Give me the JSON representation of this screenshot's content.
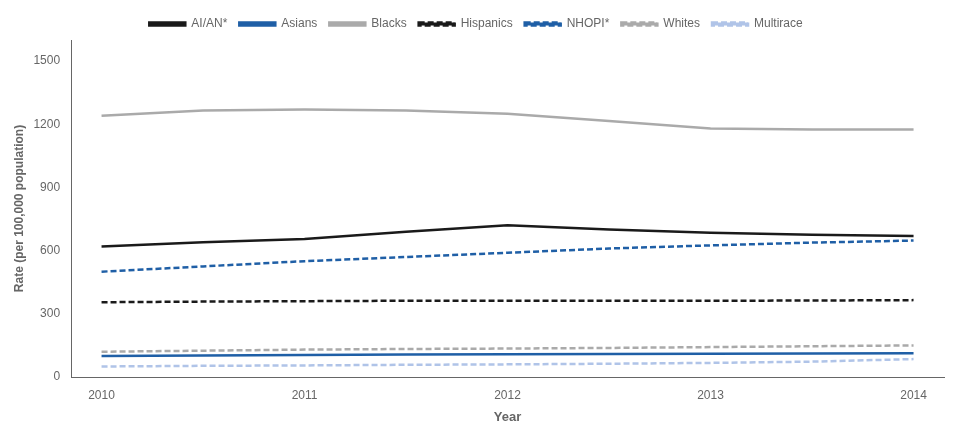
{
  "chart_data": {
    "type": "line",
    "x": [
      2010,
      2010.5,
      2011,
      2011.5,
      2012,
      2012.5,
      2013,
      2013.5,
      2014
    ],
    "series": [
      {
        "name": "AI/AN*",
        "color": "#1a1a1a",
        "line_style": "solid",
        "values": [
          620,
          640,
          655,
          690,
          720,
          700,
          685,
          675,
          670
        ]
      },
      {
        "name": "Asians",
        "color": "#1f5fa6",
        "line_style": "solid",
        "values": [
          100,
          102,
          105,
          107,
          108,
          109,
          110,
          111,
          113
        ]
      },
      {
        "name": "Blacks",
        "color": "#aaaaaa",
        "line_style": "solid",
        "values": [
          1240,
          1265,
          1270,
          1265,
          1250,
          1215,
          1180,
          1175,
          1175
        ]
      },
      {
        "name": "Hispanics",
        "color": "#1a1a1a",
        "line_style": "dashed",
        "values": [
          355,
          358,
          360,
          362,
          362,
          362,
          362,
          363,
          365
        ]
      },
      {
        "name": "NHOPI*",
        "color": "#1f5fa6",
        "line_style": "dashed",
        "values": [
          500,
          525,
          550,
          570,
          590,
          610,
          625,
          638,
          648
        ]
      },
      {
        "name": "Whites",
        "color": "#aaaaaa",
        "line_style": "dashed",
        "values": [
          120,
          125,
          130,
          133,
          135,
          138,
          142,
          146,
          150
        ]
      },
      {
        "name": "Multirace",
        "color": "#b0c4e8",
        "line_style": "dashed",
        "values": [
          50,
          53,
          55,
          58,
          60,
          63,
          67,
          73,
          85
        ]
      }
    ],
    "xlabel": "Year",
    "ylabel": "Rate (per 100,000 population)",
    "xlim": [
      2009.85,
      2014.15
    ],
    "xticks": [
      2010,
      2011,
      2012,
      2013,
      2014
    ],
    "ylim": [
      0,
      1600
    ],
    "yticks": [
      0,
      300,
      600,
      900,
      1200,
      1500
    ],
    "grid": false,
    "legend": "top"
  }
}
